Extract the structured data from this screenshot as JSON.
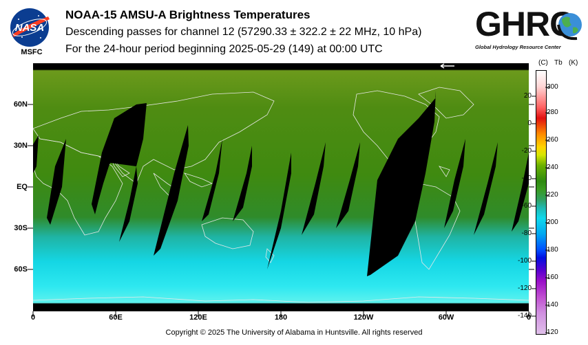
{
  "header": {
    "title": "NOAA-15 AMSU-A Brightness Temperatures",
    "subtitle1": "Descending passes for channel 12 (57290.33 ± 322.2 ± 22 MHz, 10 hPa)",
    "subtitle2": "For the 24-hour period beginning 2025-05-29 (149) at 00:00 UTC"
  },
  "logos": {
    "nasa_text": "NASA",
    "nasa_label": "MSFC",
    "ghrc_text": "GHRC",
    "ghrc_subtitle": "Global Hydrology Resource Center"
  },
  "map": {
    "lat_labels": [
      "60N",
      "30N",
      "EQ",
      "30S",
      "60S"
    ],
    "lon_labels": [
      "0",
      "60E",
      "120E",
      "180",
      "120W",
      "60W",
      "0"
    ]
  },
  "colorbar": {
    "header_c": "(C)",
    "header_tb": "Tb",
    "header_k": "(K)",
    "celsius_ticks": [
      "20",
      "0",
      "-20",
      "-40",
      "-60",
      "-80",
      "-100",
      "-120",
      "-140"
    ],
    "kelvin_ticks": [
      "300",
      "280",
      "260",
      "240",
      "220",
      "200",
      "180",
      "160",
      "140",
      "120"
    ]
  },
  "footer": {
    "copyright": "Copyright © 2025 The University of Alabama in Huntsville.  All rights reserved"
  }
}
